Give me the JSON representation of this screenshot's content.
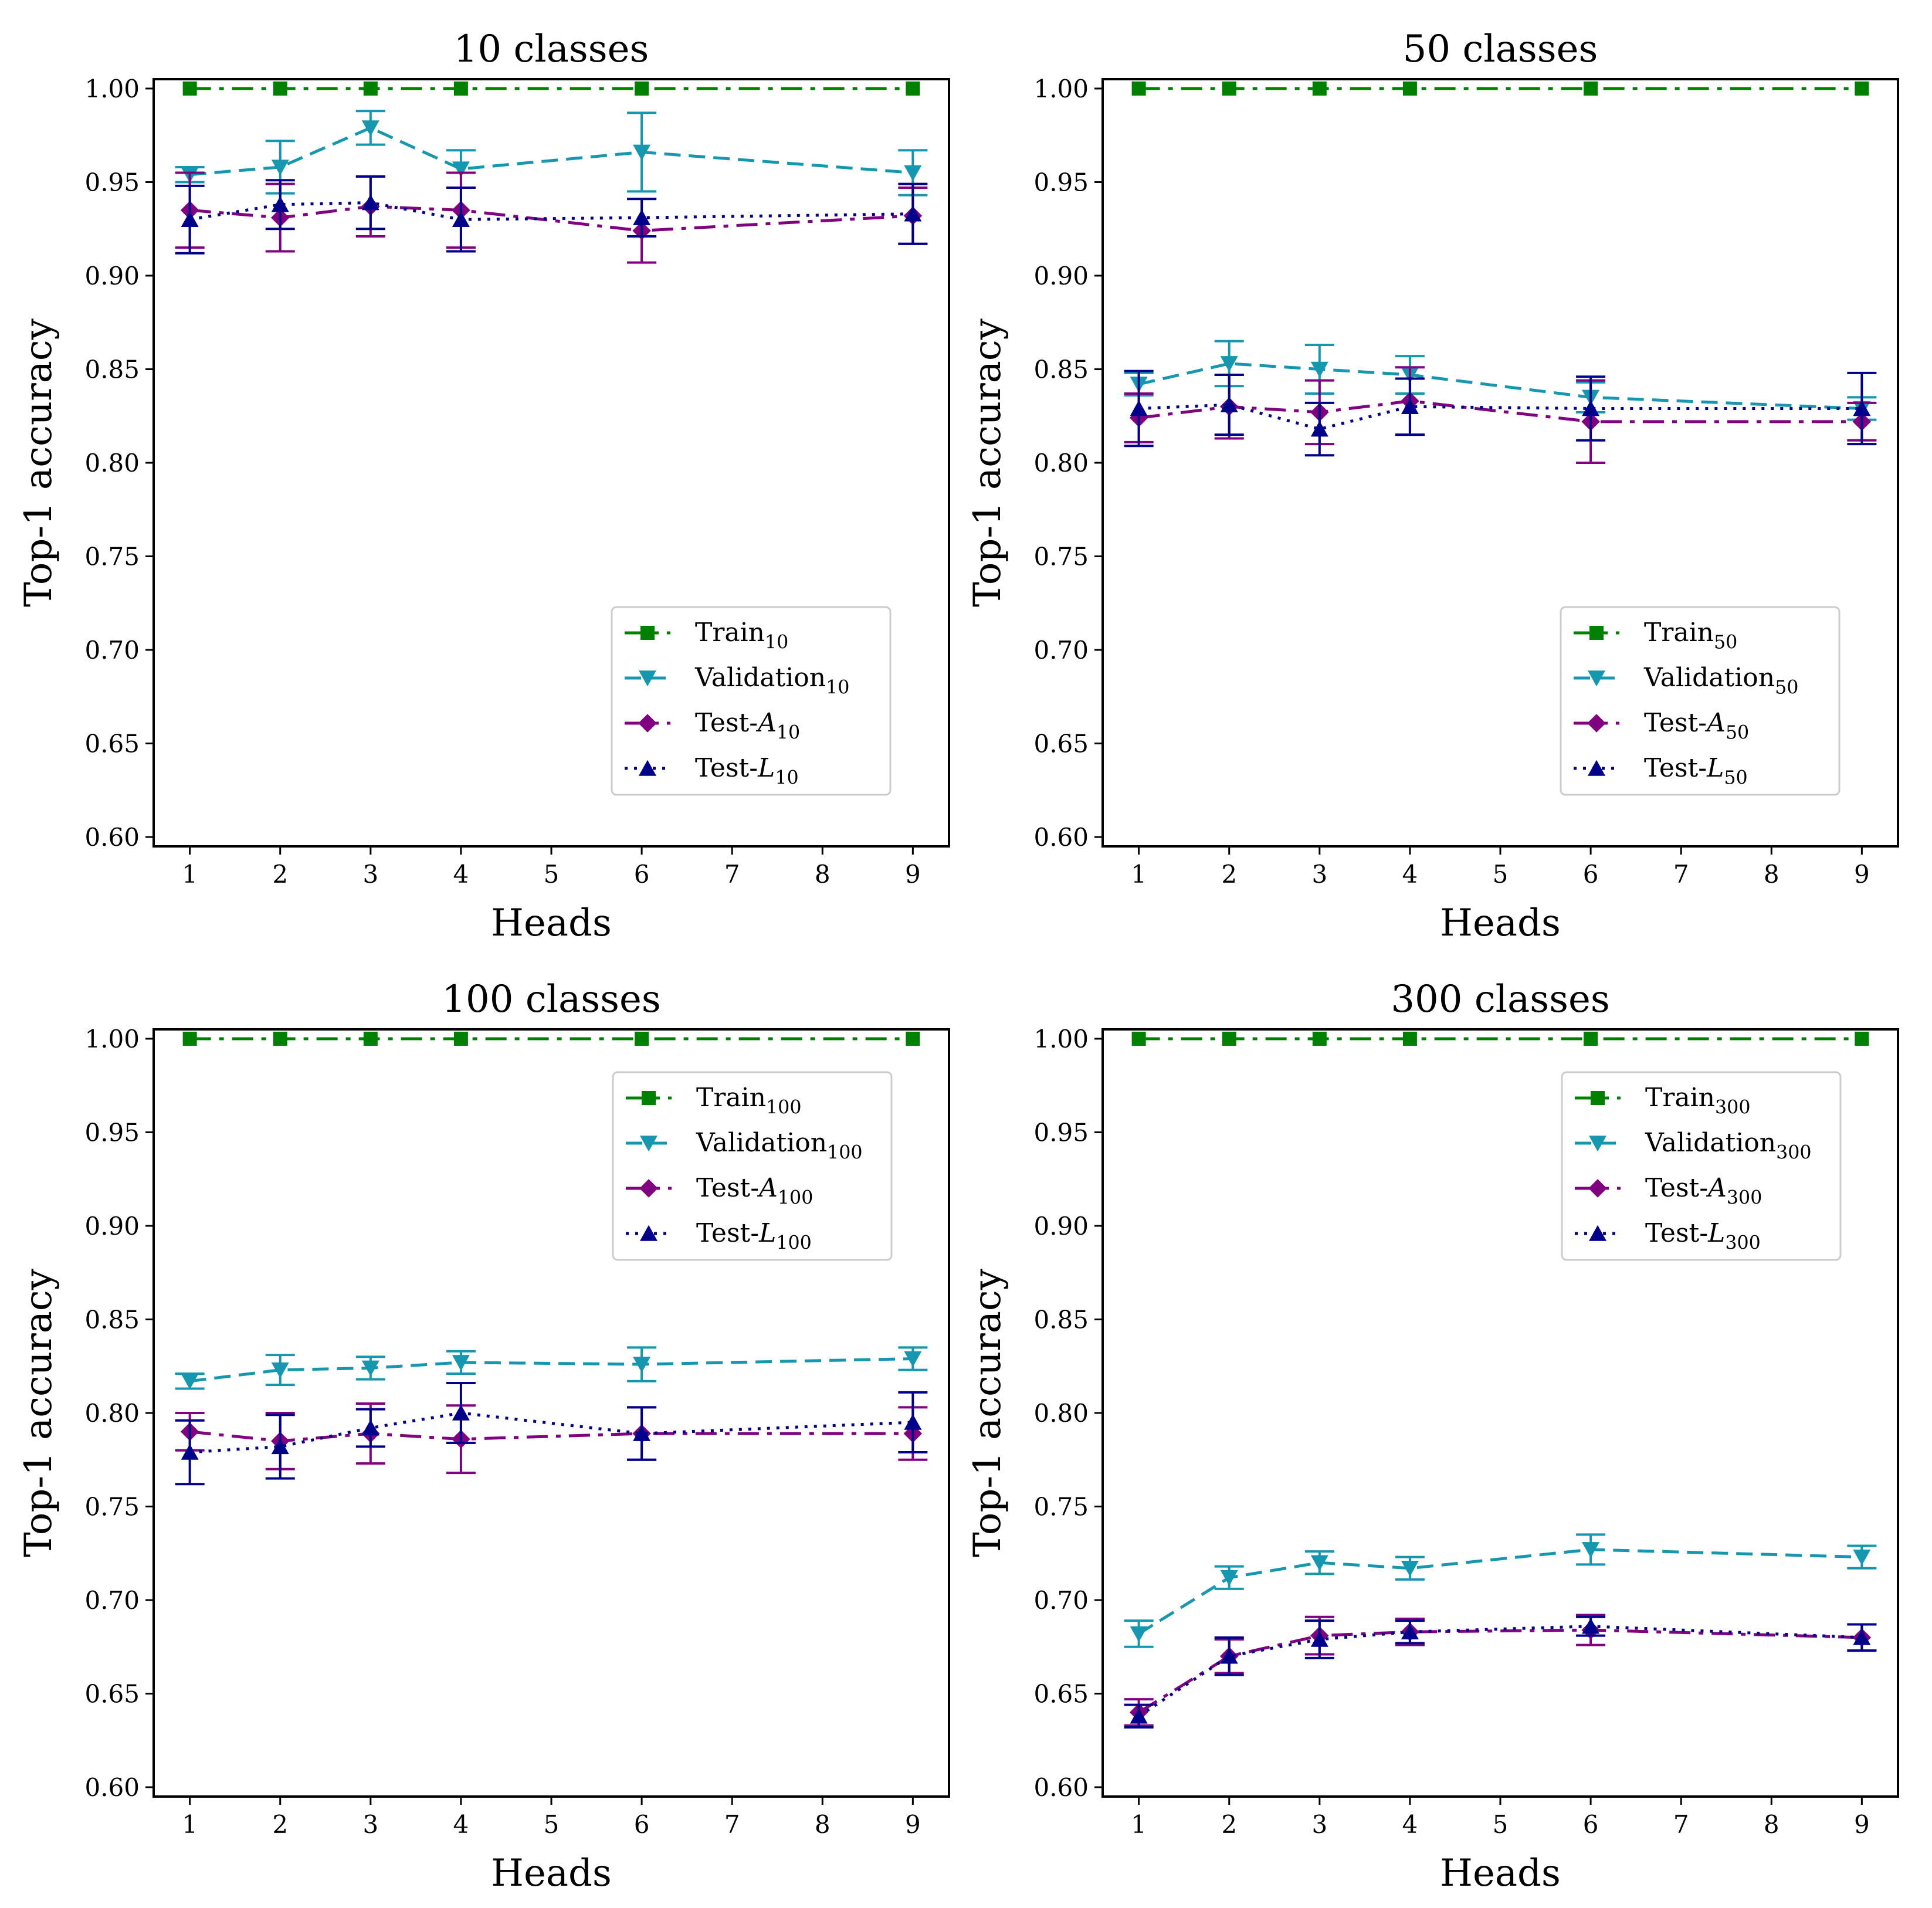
{
  "figure": {
    "title": ""
  },
  "series_styles": {
    "train": {
      "color": "#008000",
      "marker": "square",
      "dash": "dashdot"
    },
    "validation": {
      "color": "#1597B0",
      "marker": "triangle-down",
      "dash": "dashed"
    },
    "testA": {
      "color": "#800080",
      "marker": "diamond",
      "dash": "dashdot"
    },
    "testL": {
      "color": "#00008B",
      "marker": "triangle-up",
      "dash": "dotted"
    }
  },
  "chart_data": [
    {
      "type": "line",
      "title": "10 classes",
      "xlabel": "Heads",
      "ylabel": "Top-1 accuracy",
      "x": [
        1,
        2,
        3,
        4,
        6,
        9
      ],
      "xticks": [
        "1",
        "2",
        "3",
        "4",
        "5",
        "6",
        "7",
        "8",
        "9"
      ],
      "yticks": [
        "0.60",
        "0.65",
        "0.70",
        "0.75",
        "0.80",
        "0.85",
        "0.90",
        "0.95",
        "1.00"
      ],
      "xlim": [
        0.6,
        9.4
      ],
      "ylim": [
        0.595,
        1.005
      ],
      "legend_position": "lower-right",
      "series": [
        {
          "key": "train",
          "name": "Train",
          "sub": "10",
          "values": [
            1.0,
            1.0,
            1.0,
            1.0,
            1.0,
            1.0
          ],
          "err": [
            0,
            0,
            0,
            0,
            0,
            0
          ]
        },
        {
          "key": "validation",
          "name": "Validation",
          "sub": "10",
          "values": [
            0.954,
            0.958,
            0.979,
            0.957,
            0.966,
            0.955
          ],
          "err": [
            0.004,
            0.014,
            0.009,
            0.01,
            0.021,
            0.012
          ]
        },
        {
          "key": "testA",
          "name": "Test-A",
          "sub": "10",
          "values": [
            0.935,
            0.931,
            0.937,
            0.935,
            0.924,
            0.932
          ],
          "err": [
            0.02,
            0.018,
            0.016,
            0.02,
            0.017,
            0.015
          ]
        },
        {
          "key": "testL",
          "name": "Test-L",
          "sub": "10",
          "values": [
            0.93,
            0.938,
            0.939,
            0.93,
            0.931,
            0.933
          ],
          "err": [
            0.018,
            0.013,
            0.014,
            0.017,
            0.01,
            0.016
          ]
        }
      ]
    },
    {
      "type": "line",
      "title": "50 classes",
      "xlabel": "Heads",
      "ylabel": "Top-1 accuracy",
      "x": [
        1,
        2,
        3,
        4,
        6,
        9
      ],
      "xticks": [
        "1",
        "2",
        "3",
        "4",
        "5",
        "6",
        "7",
        "8",
        "9"
      ],
      "yticks": [
        "0.60",
        "0.65",
        "0.70",
        "0.75",
        "0.80",
        "0.85",
        "0.90",
        "0.95",
        "1.00"
      ],
      "xlim": [
        0.6,
        9.4
      ],
      "ylim": [
        0.595,
        1.005
      ],
      "legend_position": "lower-right",
      "series": [
        {
          "key": "train",
          "name": "Train",
          "sub": "50",
          "values": [
            1.0,
            1.0,
            1.0,
            1.0,
            1.0,
            1.0
          ],
          "err": [
            0,
            0,
            0,
            0,
            0,
            0
          ]
        },
        {
          "key": "validation",
          "name": "Validation",
          "sub": "50",
          "values": [
            0.842,
            0.853,
            0.85,
            0.847,
            0.835,
            0.829
          ],
          "err": [
            0.006,
            0.012,
            0.013,
            0.01,
            0.008,
            0.006
          ]
        },
        {
          "key": "testA",
          "name": "Test-A",
          "sub": "50",
          "values": [
            0.824,
            0.83,
            0.827,
            0.833,
            0.822,
            0.822
          ],
          "err": [
            0.013,
            0.017,
            0.017,
            0.018,
            0.022,
            0.01
          ]
        },
        {
          "key": "testL",
          "name": "Test-L",
          "sub": "50",
          "values": [
            0.829,
            0.831,
            0.818,
            0.83,
            0.829,
            0.829
          ],
          "err": [
            0.02,
            0.016,
            0.014,
            0.015,
            0.017,
            0.019
          ]
        }
      ]
    },
    {
      "type": "line",
      "title": "100 classes",
      "xlabel": "Heads",
      "ylabel": "Top-1 accuracy",
      "x": [
        1,
        2,
        3,
        4,
        6,
        9
      ],
      "xticks": [
        "1",
        "2",
        "3",
        "4",
        "5",
        "6",
        "7",
        "8",
        "9"
      ],
      "yticks": [
        "0.60",
        "0.65",
        "0.70",
        "0.75",
        "0.80",
        "0.85",
        "0.90",
        "0.95",
        "1.00"
      ],
      "xlim": [
        0.6,
        9.4
      ],
      "ylim": [
        0.595,
        1.005
      ],
      "legend_position": "upper-right",
      "series": [
        {
          "key": "train",
          "name": "Train",
          "sub": "100",
          "values": [
            1.0,
            1.0,
            1.0,
            1.0,
            1.0,
            1.0
          ],
          "err": [
            0,
            0,
            0,
            0,
            0,
            0
          ]
        },
        {
          "key": "validation",
          "name": "Validation",
          "sub": "100",
          "values": [
            0.817,
            0.823,
            0.824,
            0.827,
            0.826,
            0.829
          ],
          "err": [
            0.004,
            0.008,
            0.006,
            0.006,
            0.009,
            0.006
          ]
        },
        {
          "key": "testA",
          "name": "Test-A",
          "sub": "100",
          "values": [
            0.79,
            0.785,
            0.789,
            0.786,
            0.789,
            0.789
          ],
          "err": [
            0.01,
            0.015,
            0.016,
            0.018,
            0.014,
            0.014
          ]
        },
        {
          "key": "testL",
          "name": "Test-L",
          "sub": "100",
          "values": [
            0.779,
            0.782,
            0.792,
            0.8,
            0.789,
            0.795
          ],
          "err": [
            0.017,
            0.017,
            0.01,
            0.016,
            0.014,
            0.016
          ]
        }
      ]
    },
    {
      "type": "line",
      "title": "300 classes",
      "xlabel": "Heads",
      "ylabel": "Top-1 accuracy",
      "x": [
        1,
        2,
        3,
        4,
        6,
        9
      ],
      "xticks": [
        "1",
        "2",
        "3",
        "4",
        "5",
        "6",
        "7",
        "8",
        "9"
      ],
      "yticks": [
        "0.60",
        "0.65",
        "0.70",
        "0.75",
        "0.80",
        "0.85",
        "0.90",
        "0.95",
        "1.00"
      ],
      "xlim": [
        0.6,
        9.4
      ],
      "ylim": [
        0.595,
        1.005
      ],
      "legend_position": "upper-right",
      "series": [
        {
          "key": "train",
          "name": "Train",
          "sub": "300",
          "values": [
            1.0,
            1.0,
            1.0,
            1.0,
            1.0,
            1.0
          ],
          "err": [
            0,
            0,
            0,
            0,
            0,
            0
          ]
        },
        {
          "key": "validation",
          "name": "Validation",
          "sub": "300",
          "values": [
            0.682,
            0.712,
            0.72,
            0.717,
            0.727,
            0.723
          ],
          "err": [
            0.007,
            0.006,
            0.006,
            0.006,
            0.008,
            0.006
          ]
        },
        {
          "key": "testA",
          "name": "Test-A",
          "sub": "300",
          "values": [
            0.64,
            0.67,
            0.681,
            0.683,
            0.684,
            0.68
          ],
          "err": [
            0.007,
            0.009,
            0.01,
            0.007,
            0.008,
            0.007
          ]
        },
        {
          "key": "testL",
          "name": "Test-L",
          "sub": "300",
          "values": [
            0.638,
            0.67,
            0.679,
            0.683,
            0.686,
            0.68
          ],
          "err": [
            0.006,
            0.01,
            0.01,
            0.006,
            0.005,
            0.007
          ]
        }
      ]
    }
  ]
}
